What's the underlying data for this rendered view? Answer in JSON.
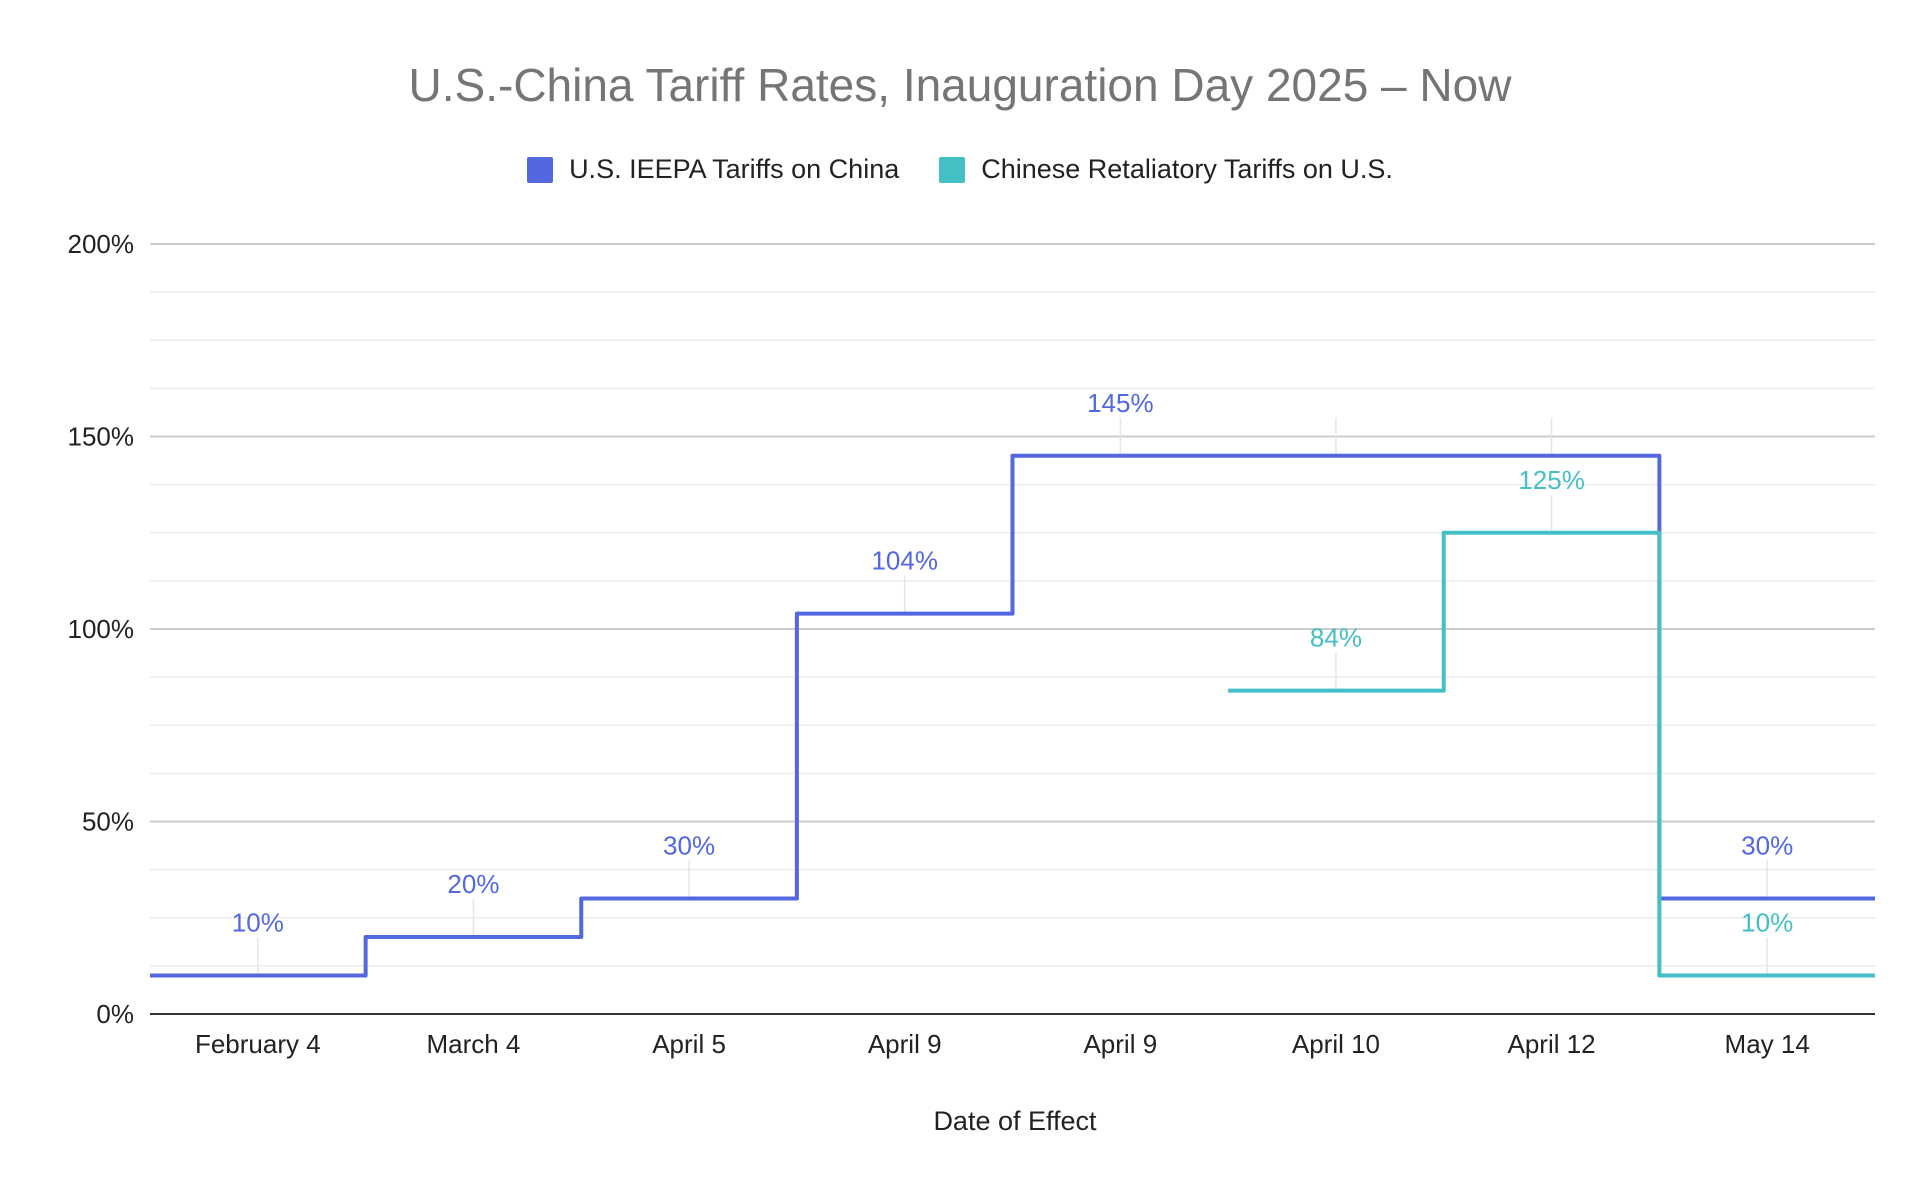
{
  "chart_data": {
    "type": "line",
    "step": true,
    "title": "U.S.-China Tariff Rates, Inauguration Day 2025 – Now",
    "xlabel": "Date of Effect",
    "ylabel": "",
    "ylim": [
      0,
      200
    ],
    "yticks": [
      0,
      50,
      100,
      150,
      200
    ],
    "ytick_labels": [
      "0%",
      "50%",
      "100%",
      "150%",
      "200%"
    ],
    "grid": true,
    "legend_position": "top-center",
    "categories": [
      "February 4",
      "March 4",
      "April 5",
      "April 9",
      "April 9",
      "April 10",
      "April 12",
      "May 14"
    ],
    "series": [
      {
        "name": "U.S. IEEPA Tariffs on China",
        "color": "#5367de",
        "values": [
          10,
          20,
          30,
          104,
          145,
          145,
          145,
          30
        ],
        "labels": [
          "10%",
          "20%",
          "30%",
          "104%",
          "145%",
          "",
          "",
          "30%"
        ]
      },
      {
        "name": "Chinese Retaliatory Tariffs on U.S.",
        "color": "#45bfc6",
        "values": [
          null,
          null,
          null,
          null,
          null,
          84,
          125,
          10
        ],
        "labels": [
          "",
          "",
          "",
          "",
          "",
          "84%",
          "125%",
          "10%"
        ]
      }
    ]
  }
}
